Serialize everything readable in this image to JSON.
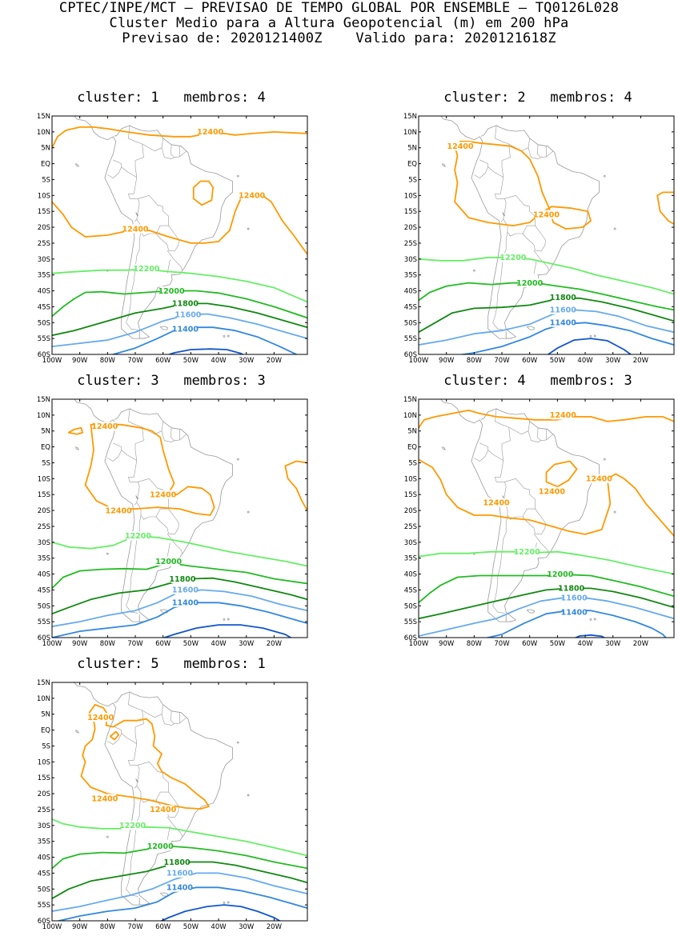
{
  "header": {
    "line1": "CPTEC/INPE/MCT – PREVISAO DE TEMPO GLOBAL POR ENSEMBLE – TQ0126L028",
    "line2": "Cluster Medio para a Altura Geopotencial (m) em 200 hPa",
    "line3": "Previsao de: 2020121400Z    Valido para: 2020121618Z"
  },
  "lat_ticks": [
    "15N",
    "10N",
    "5N",
    "EQ",
    "5S",
    "10S",
    "15S",
    "20S",
    "25S",
    "30S",
    "35S",
    "40S",
    "45S",
    "50S",
    "55S",
    "60S"
  ],
  "lon_ticks": [
    "100W",
    "90W",
    "80W",
    "70W",
    "60W",
    "50W",
    "40W",
    "30W",
    "20W"
  ],
  "colors": {
    "c12400": "#ff9900",
    "c12200": "#66ee66",
    "c12000": "#22bb22",
    "c11800": "#118811",
    "c11600": "#66aaee",
    "c11400": "#3388dd",
    "c11200": "#1155cc",
    "coast": "#999999"
  },
  "panels": [
    {
      "title": "cluster: 1   membros: 4",
      "labels": [
        {
          "text": "12400",
          "lon": -43,
          "lat": 10,
          "c": "c12400"
        },
        {
          "text": "12400",
          "lon": -28,
          "lat": -10,
          "c": "c12400"
        },
        {
          "text": "12400",
          "lon": -70,
          "lat": -20.5,
          "c": "c12400"
        },
        {
          "text": "12200",
          "lon": -66,
          "lat": -33,
          "c": "c12200"
        },
        {
          "text": "12000",
          "lon": -57,
          "lat": -40,
          "c": "c12000"
        },
        {
          "text": "11800",
          "lon": -52,
          "lat": -44,
          "c": "c11800"
        },
        {
          "text": "11600",
          "lon": -51,
          "lat": -47.5,
          "c": "c11600"
        },
        {
          "text": "11400",
          "lon": -52,
          "lat": -52,
          "c": "c11400"
        }
      ]
    },
    {
      "title": "cluster: 2   membros: 4",
      "labels": [
        {
          "text": "12400",
          "lon": -85,
          "lat": 5.5,
          "c": "c12400"
        },
        {
          "text": "12400",
          "lon": -54,
          "lat": -16,
          "c": "c12400"
        },
        {
          "text": "12200",
          "lon": -66,
          "lat": -29.5,
          "c": "c12200"
        },
        {
          "text": "12000",
          "lon": -60,
          "lat": -37.5,
          "c": "c12000"
        },
        {
          "text": "11800",
          "lon": -48,
          "lat": -42,
          "c": "c11800"
        },
        {
          "text": "11600",
          "lon": -48,
          "lat": -46,
          "c": "c11600"
        },
        {
          "text": "11400",
          "lon": -48,
          "lat": -50,
          "c": "c11400"
        }
      ]
    },
    {
      "title": "cluster: 3   membros: 3",
      "labels": [
        {
          "text": "12400",
          "lon": -81,
          "lat": 6.5,
          "c": "c12400"
        },
        {
          "text": "12400",
          "lon": -60,
          "lat": -15,
          "c": "c12400"
        },
        {
          "text": "12400",
          "lon": -76,
          "lat": -20,
          "c": "c12400"
        },
        {
          "text": "12200",
          "lon": -69,
          "lat": -28,
          "c": "c12200"
        },
        {
          "text": "12000",
          "lon": -58,
          "lat": -36,
          "c": "c12000"
        },
        {
          "text": "11800",
          "lon": -53,
          "lat": -41.5,
          "c": "c11800"
        },
        {
          "text": "11600",
          "lon": -52,
          "lat": -45,
          "c": "c11600"
        },
        {
          "text": "11400",
          "lon": -52,
          "lat": -49,
          "c": "c11400"
        }
      ]
    },
    {
      "title": "cluster: 4   membros: 3",
      "labels": [
        {
          "text": "12400",
          "lon": -48,
          "lat": 10,
          "c": "c12400"
        },
        {
          "text": "12400",
          "lon": -52,
          "lat": -14,
          "c": "c12400"
        },
        {
          "text": "12400",
          "lon": -35,
          "lat": -10,
          "c": "c12400"
        },
        {
          "text": "12400",
          "lon": -72,
          "lat": -17.5,
          "c": "c12400"
        },
        {
          "text": "12200",
          "lon": -61,
          "lat": -33,
          "c": "c12200"
        },
        {
          "text": "12000",
          "lon": -49,
          "lat": -40,
          "c": "c12000"
        },
        {
          "text": "11800",
          "lon": -45,
          "lat": -44.5,
          "c": "c11800"
        },
        {
          "text": "11600",
          "lon": -44,
          "lat": -47.5,
          "c": "c11600"
        },
        {
          "text": "11400",
          "lon": -44,
          "lat": -52,
          "c": "c11400"
        }
      ]
    },
    {
      "title": "cluster: 5   membros: 1",
      "labels": [
        {
          "text": "12400",
          "lon": -82.5,
          "lat": 4,
          "c": "c12400"
        },
        {
          "text": "12400",
          "lon": -81,
          "lat": -21.5,
          "c": "c12400"
        },
        {
          "text": "12400",
          "lon": -60,
          "lat": -25,
          "c": "c12400"
        },
        {
          "text": "12200",
          "lon": -71,
          "lat": -30,
          "c": "c12200"
        },
        {
          "text": "12000",
          "lon": -61,
          "lat": -36.5,
          "c": "c12000"
        },
        {
          "text": "11800",
          "lon": -55,
          "lat": -41.5,
          "c": "c11800"
        },
        {
          "text": "11600",
          "lon": -54,
          "lat": -45,
          "c": "c11600"
        },
        {
          "text": "11400",
          "lon": -54,
          "lat": -49.5,
          "c": "c11400"
        }
      ]
    }
  ]
}
